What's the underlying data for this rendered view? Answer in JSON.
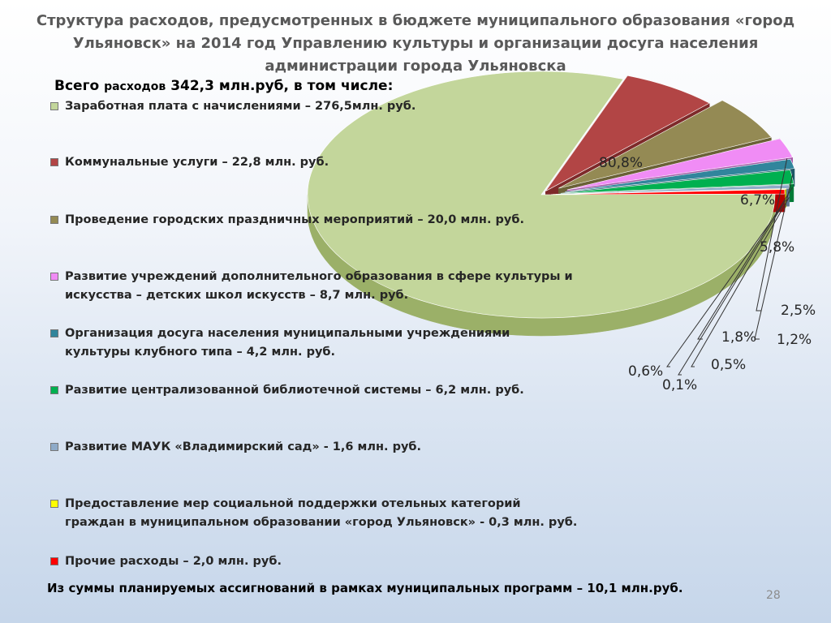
{
  "title": "Структура расходов, предусмотренных в бюджете муниципального образования «город Ульяновск» на 2014 год Управлению культуры и организации досуга населения администрации города Ульяновска",
  "total": {
    "prefix": "Всего",
    "middle": "расходов",
    "suffix": "342,3 млн.руб, в том числе:"
  },
  "footer": "Из суммы планируемых ассигнований в рамках муниципальных программ – 10,1 млн.руб.",
  "page_number": "28",
  "chart_data": {
    "type": "pie",
    "title": "",
    "total": 342.3,
    "unit": "млн. руб.",
    "slices": [
      {
        "label": "Заработная плата с начислениями – 276,5млн. руб.",
        "value": 276.5,
        "percent": "80,8%",
        "color": "#c3d69b",
        "side": "#9bb068"
      },
      {
        "label": "Коммунальные услуги – 22,8 млн. руб.",
        "value": 22.8,
        "percent": "6,7%",
        "color": "#b24545",
        "side": "#7e2a2a"
      },
      {
        "label": "Проведение городских праздничных мероприятий – 20,0 млн. руб.",
        "value": 20.0,
        "percent": "5,8%",
        "color": "#948a54",
        "side": "#6a6136"
      },
      {
        "label": "Развитие учреждений дополнительного образования в сфере культуры и искусства – детских школ искусств – 8,7 млн. руб.",
        "value": 8.7,
        "percent": "2,5%",
        "color": "#f08cf5",
        "side": "#a658a8"
      },
      {
        "label": "Организация досуга населения муниципальными учреждениями культуры клубного типа – 4,2 млн. руб.",
        "value": 4.2,
        "percent": "1,2%",
        "color": "#31859c",
        "side": "#1d5868"
      },
      {
        "label": "Развитие централизованной библиотечной системы – 6,2 млн. руб.",
        "value": 6.2,
        "percent": "1,8%",
        "color": "#00b050",
        "side": "#007a36"
      },
      {
        "label": "Развитие МАУК «Владимирский сад» - 1,6 млн. руб.",
        "value": 1.6,
        "percent": "0,5%",
        "color": "#8eaac8",
        "side": "#5f7892"
      },
      {
        "label": "Предоставление мер социальной поддержки отельных категорий граждан в муниципальном образовании «город Ульяновск» - 0,3 млн. руб.",
        "value": 0.3,
        "percent": "0,1%",
        "color": "#ffff00",
        "side": "#b8b800"
      },
      {
        "label": "Прочие расходы – 2,0 млн. руб.",
        "value": 2.0,
        "percent": "0,6%",
        "color": "#ff0000",
        "side": "#b00000"
      }
    ]
  }
}
